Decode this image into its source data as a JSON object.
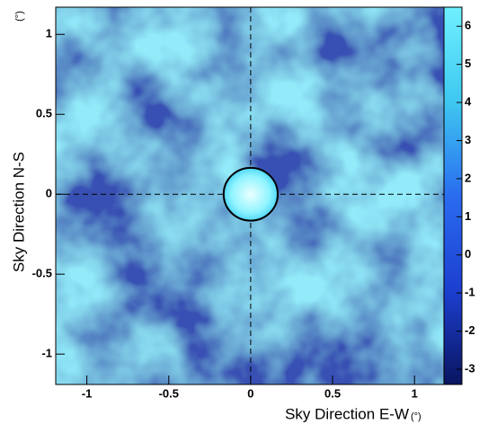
{
  "chart_data": {
    "type": "heatmap",
    "xlabel": "Sky Direction E-W",
    "xunit": "(°)",
    "ylabel": "Sky Direction N-S",
    "yunit": "(°)",
    "xlim": [
      -1.19,
      1.18
    ],
    "xticks": [
      -1,
      -0.5,
      0,
      0.5,
      1
    ],
    "ylim": [
      -1.19,
      1.17
    ],
    "yticks": [
      -1,
      -0.5,
      0,
      0.5,
      1
    ],
    "zlim": [
      -3.4,
      6.5
    ],
    "zticks": [
      -3,
      -2,
      -1,
      0,
      1,
      2,
      3,
      4,
      5,
      6
    ],
    "colors": [
      "#0a1560",
      "#1c3fd0",
      "#2a6cf0",
      "#3ec8f0",
      "#6ff0ff"
    ],
    "crosshair": true,
    "circle": {
      "x": 0,
      "y": 0,
      "r": 0.165
    }
  }
}
